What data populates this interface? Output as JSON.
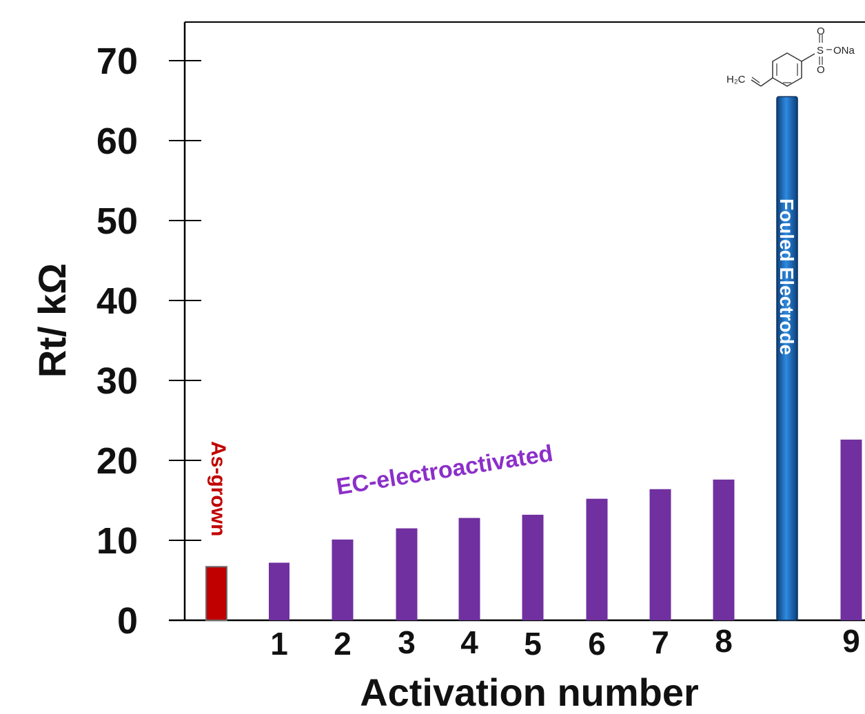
{
  "chart_data": {
    "type": "bar",
    "title": "",
    "xlabel": "Activation number",
    "ylabel": "Rt/ kΩ",
    "ylim": [
      0,
      70
    ],
    "yticks": [
      0,
      10,
      20,
      30,
      40,
      50,
      60,
      70
    ],
    "grid": false,
    "categories": [
      "",
      "1",
      "2",
      "3",
      "4",
      "5",
      "6",
      "7",
      "8",
      "",
      "9"
    ],
    "values": [
      6.7,
      7.2,
      10.1,
      11.5,
      12.8,
      13.2,
      15.2,
      16.4,
      17.6,
      65.5,
      22.6
    ],
    "bar_colors": [
      "#c00000",
      "#7030a0",
      "#7030a0",
      "#7030a0",
      "#7030a0",
      "#7030a0",
      "#7030a0",
      "#7030a0",
      "#7030a0",
      "#1f6fc1",
      "#7030a0"
    ],
    "annotations": {
      "as_grown": "As-grown",
      "ec_electroactivated": "EC-electroactivated",
      "fouled_electrode": "Fouled Electrode"
    },
    "molecule_labels": {
      "h2c": "H₂C",
      "ona": "ONa",
      "s": "S",
      "o": "O"
    },
    "colors": {
      "as_grown": "#c00000",
      "activated": "#7030a0",
      "fouled": "#1f6fc1"
    }
  }
}
